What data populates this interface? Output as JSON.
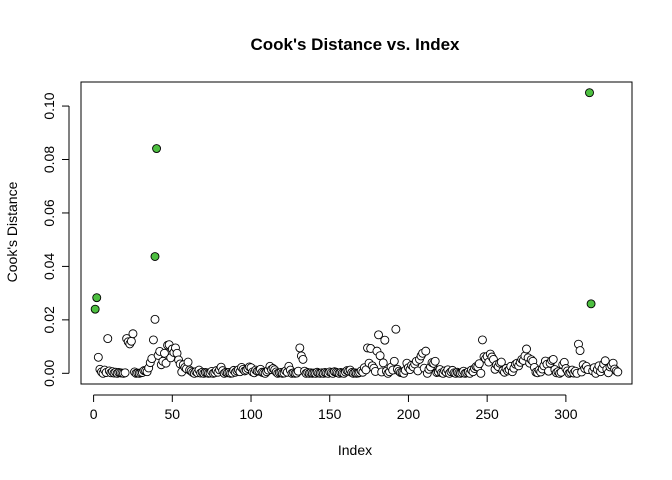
{
  "chart_data": {
    "type": "scatter",
    "title": "Cook's Distance vs. Index",
    "xlabel": "Index",
    "ylabel": "Cook's Distance",
    "xlim": [
      -8,
      342
    ],
    "ylim": [
      -0.004,
      0.109
    ],
    "xticks": [
      0,
      50,
      100,
      150,
      200,
      250,
      300
    ],
    "yticks": [
      0.0,
      0.02,
      0.04,
      0.06,
      0.08,
      0.1
    ],
    "ytick_labels": [
      "0.00",
      "0.02",
      "0.04",
      "0.06",
      "0.08",
      "0.10"
    ],
    "grid": false,
    "legend": "none",
    "colors": {
      "normal_fill": "#ffffff",
      "influential_fill": "#4dbf40",
      "stroke": "#000000"
    },
    "influential": [
      {
        "x": 1,
        "y": 0.024
      },
      {
        "x": 2,
        "y": 0.0283
      },
      {
        "x": 39,
        "y": 0.0437
      },
      {
        "x": 40,
        "y": 0.0841
      },
      {
        "x": 315,
        "y": 0.105
      },
      {
        "x": 316,
        "y": 0.026
      }
    ],
    "points": [
      [
        3,
        0.006
      ],
      [
        4,
        0.0015
      ],
      [
        5,
        0.0005
      ],
      [
        6,
        0.0
      ],
      [
        7,
        0.0012
      ],
      [
        8,
        0.0003
      ],
      [
        9,
        0.013
      ],
      [
        10,
        0.0009
      ],
      [
        11,
        0.0002
      ],
      [
        12,
        0.0006
      ],
      [
        13,
        0.0001
      ],
      [
        14,
        0.0004
      ],
      [
        15,
        0.0
      ],
      [
        16,
        0.0003
      ],
      [
        17,
        0.0002
      ],
      [
        18,
        0.0001
      ],
      [
        19,
        0.0
      ],
      [
        20,
        0.0002
      ],
      [
        21,
        0.013
      ],
      [
        22,
        0.0118
      ],
      [
        23,
        0.011
      ],
      [
        24,
        0.012
      ],
      [
        25,
        0.0148
      ],
      [
        26,
        0.0005
      ],
      [
        27,
        0.0
      ],
      [
        28,
        0.0001
      ],
      [
        29,
        0.0
      ],
      [
        30,
        0.0002
      ],
      [
        31,
        0.0003
      ],
      [
        32,
        0.001
      ],
      [
        33,
        0.0009
      ],
      [
        34,
        0.0006
      ],
      [
        35,
        0.002
      ],
      [
        36,
        0.004
      ],
      [
        37,
        0.0055
      ],
      [
        38,
        0.0125
      ],
      [
        39,
        0.0202
      ],
      [
        41,
        0.0067
      ],
      [
        42,
        0.0082
      ],
      [
        43,
        0.0032
      ],
      [
        44,
        0.0045
      ],
      [
        45,
        0.0075
      ],
      [
        46,
        0.0038
      ],
      [
        47,
        0.0105
      ],
      [
        48,
        0.0107
      ],
      [
        49,
        0.0058
      ],
      [
        50,
        0.0091
      ],
      [
        51,
        0.0078
      ],
      [
        52,
        0.0095
      ],
      [
        53,
        0.0075
      ],
      [
        54,
        0.005
      ],
      [
        55,
        0.0035
      ],
      [
        56,
        0.0005
      ],
      [
        57,
        0.0032
      ],
      [
        58,
        0.0022
      ],
      [
        59,
        0.0017
      ],
      [
        60,
        0.0042
      ],
      [
        61,
        0.0012
      ],
      [
        62,
        0.0008
      ],
      [
        63,
        0.0003
      ],
      [
        64,
        0.0
      ],
      [
        65,
        0.0006
      ],
      [
        66,
        0.0002
      ],
      [
        67,
        0.0012
      ],
      [
        68,
        0.0001
      ],
      [
        69,
        0.0004
      ],
      [
        70,
        0.0
      ],
      [
        71,
        0.0003
      ],
      [
        72,
        0.0002
      ],
      [
        73,
        0.0
      ],
      [
        74,
        0.0001
      ],
      [
        75,
        0.0007
      ],
      [
        76,
        0.0
      ],
      [
        77,
        0.0002
      ],
      [
        78,
        0.001
      ],
      [
        79,
        0.0004
      ],
      [
        80,
        0.0013
      ],
      [
        81,
        0.0023
      ],
      [
        82,
        0.001
      ],
      [
        83,
        0.0
      ],
      [
        84,
        0.0004
      ],
      [
        85,
        0.0002
      ],
      [
        86,
        0.0003
      ],
      [
        87,
        0.0
      ],
      [
        88,
        0.0001
      ],
      [
        89,
        0.0011
      ],
      [
        90,
        0.0004
      ],
      [
        91,
        0.0009
      ],
      [
        92,
        0.0013
      ],
      [
        93,
        0.0006
      ],
      [
        94,
        0.0022
      ],
      [
        95,
        0.0015
      ],
      [
        96,
        0.0009
      ],
      [
        97,
        0.0012
      ],
      [
        98,
        0.0018
      ],
      [
        99,
        0.0024
      ],
      [
        100,
        0.0021
      ],
      [
        101,
        0.0005
      ],
      [
        102,
        0.0002
      ],
      [
        103,
        0.0012
      ],
      [
        104,
        0.0008
      ],
      [
        105,
        0.0009
      ],
      [
        106,
        0.0015
      ],
      [
        107,
        0.0004
      ],
      [
        108,
        0.0002
      ],
      [
        109,
        0.0
      ],
      [
        110,
        0.0006
      ],
      [
        111,
        0.0012
      ],
      [
        112,
        0.0026
      ],
      [
        113,
        0.0014
      ],
      [
        114,
        0.0018
      ],
      [
        115,
        0.0013
      ],
      [
        116,
        0.0005
      ],
      [
        117,
        0.0
      ],
      [
        118,
        0.0002
      ],
      [
        119,
        0.0003
      ],
      [
        120,
        0.0
      ],
      [
        121,
        0.0001
      ],
      [
        122,
        0.0009
      ],
      [
        123,
        0.0004
      ],
      [
        124,
        0.0026
      ],
      [
        125,
        0.0012
      ],
      [
        126,
        0.0
      ],
      [
        127,
        0.0002
      ],
      [
        128,
        0.0
      ],
      [
        129,
        0.0001
      ],
      [
        130,
        0.0008
      ],
      [
        131,
        0.0095
      ],
      [
        132,
        0.0065
      ],
      [
        133,
        0.0052
      ],
      [
        134,
        0.0008
      ],
      [
        135,
        0.0
      ],
      [
        136,
        0.0003
      ],
      [
        137,
        0.0
      ],
      [
        138,
        0.0002
      ],
      [
        139,
        0.0
      ],
      [
        140,
        0.0001
      ],
      [
        141,
        0.0
      ],
      [
        142,
        0.0004
      ],
      [
        143,
        0.0001
      ],
      [
        144,
        0.0
      ],
      [
        145,
        0.0002
      ],
      [
        146,
        0.0
      ],
      [
        147,
        0.0003
      ],
      [
        148,
        0.0001
      ],
      [
        149,
        0.0
      ],
      [
        150,
        0.0005
      ],
      [
        151,
        0.0002
      ],
      [
        152,
        0.0
      ],
      [
        153,
        0.0006
      ],
      [
        154,
        0.0004
      ],
      [
        155,
        0.0002
      ],
      [
        156,
        0.0
      ],
      [
        157,
        0.0003
      ],
      [
        158,
        0.0001
      ],
      [
        159,
        0.0
      ],
      [
        160,
        0.0005
      ],
      [
        161,
        0.001
      ],
      [
        162,
        0.0008
      ],
      [
        163,
        0.0012
      ],
      [
        164,
        0.0003
      ],
      [
        165,
        0.0
      ],
      [
        166,
        0.0002
      ],
      [
        167,
        0.0
      ],
      [
        168,
        0.0001
      ],
      [
        169,
        0.0003
      ],
      [
        170,
        0.0009
      ],
      [
        171,
        0.0004
      ],
      [
        172,
        0.0021
      ],
      [
        173,
        0.0013
      ],
      [
        174,
        0.0095
      ],
      [
        175,
        0.0038
      ],
      [
        176,
        0.0093
      ],
      [
        177,
        0.0028
      ],
      [
        178,
        0.0019
      ],
      [
        179,
        0.0007
      ],
      [
        180,
        0.0083
      ],
      [
        181,
        0.0144
      ],
      [
        182,
        0.0066
      ],
      [
        183,
        0.0005
      ],
      [
        184,
        0.0039
      ],
      [
        185,
        0.0124
      ],
      [
        186,
        0.0008
      ],
      [
        187,
        0.0
      ],
      [
        188,
        0.0006
      ],
      [
        189,
        0.0023
      ],
      [
        190,
        0.0012
      ],
      [
        191,
        0.0045
      ],
      [
        192,
        0.0165
      ],
      [
        193,
        0.0015
      ],
      [
        194,
        0.0008
      ],
      [
        195,
        0.0003
      ],
      [
        196,
        0.0002
      ],
      [
        197,
        0.0
      ],
      [
        198,
        0.0011
      ],
      [
        199,
        0.0038
      ],
      [
        200,
        0.0021
      ],
      [
        201,
        0.0014
      ],
      [
        202,
        0.003
      ],
      [
        203,
        0.0024
      ],
      [
        204,
        0.0035
      ],
      [
        205,
        0.0045
      ],
      [
        206,
        0.0009
      ],
      [
        207,
        0.0052
      ],
      [
        208,
        0.0065
      ],
      [
        209,
        0.0075
      ],
      [
        210,
        0.0019
      ],
      [
        211,
        0.0083
      ],
      [
        212,
        0.0
      ],
      [
        213,
        0.0015
      ],
      [
        214,
        0.0024
      ],
      [
        215,
        0.004
      ],
      [
        216,
        0.0037
      ],
      [
        217,
        0.0045
      ],
      [
        218,
        0.0003
      ],
      [
        219,
        0.0005
      ],
      [
        220,
        0.0014
      ],
      [
        221,
        0.0002
      ],
      [
        222,
        0.0
      ],
      [
        223,
        0.0009
      ],
      [
        224,
        0.0004
      ],
      [
        225,
        0.0013
      ],
      [
        226,
        0.0
      ],
      [
        227,
        0.0006
      ],
      [
        228,
        0.0011
      ],
      [
        229,
        0.0002
      ],
      [
        230,
        0.0
      ],
      [
        231,
        0.0004
      ],
      [
        232,
        0.0001
      ],
      [
        233,
        0.0
      ],
      [
        234,
        0.0003
      ],
      [
        235,
        0.0008
      ],
      [
        236,
        0.0
      ],
      [
        237,
        0.0002
      ],
      [
        238,
        0.0005
      ],
      [
        239,
        0.0
      ],
      [
        240,
        0.0012
      ],
      [
        241,
        0.0006
      ],
      [
        242,
        0.0018
      ],
      [
        243,
        0.0025
      ],
      [
        244,
        0.0024
      ],
      [
        245,
        0.0036
      ],
      [
        246,
        0.0
      ],
      [
        247,
        0.0125
      ],
      [
        248,
        0.0062
      ],
      [
        249,
        0.0055
      ],
      [
        250,
        0.0063
      ],
      [
        251,
        0.0042
      ],
      [
        252,
        0.0072
      ],
      [
        253,
        0.0061
      ],
      [
        254,
        0.0052
      ],
      [
        255,
        0.0015
      ],
      [
        256,
        0.0032
      ],
      [
        257,
        0.0025
      ],
      [
        258,
        0.0038
      ],
      [
        259,
        0.0042
      ],
      [
        260,
        0.001
      ],
      [
        261,
        0.0004
      ],
      [
        262,
        0.0018
      ],
      [
        263,
        0.0009
      ],
      [
        264,
        0.0014
      ],
      [
        265,
        0.0026
      ],
      [
        266,
        0.0006
      ],
      [
        267,
        0.0019
      ],
      [
        268,
        0.0034
      ],
      [
        269,
        0.0038
      ],
      [
        270,
        0.0028
      ],
      [
        271,
        0.0041
      ],
      [
        272,
        0.0052
      ],
      [
        273,
        0.0048
      ],
      [
        274,
        0.0065
      ],
      [
        275,
        0.0091
      ],
      [
        276,
        0.0058
      ],
      [
        277,
        0.0038
      ],
      [
        278,
        0.0051
      ],
      [
        279,
        0.0045
      ],
      [
        280,
        0.0022
      ],
      [
        281,
        0.0004
      ],
      [
        282,
        0.0002
      ],
      [
        283,
        0.0012
      ],
      [
        284,
        0.0005
      ],
      [
        285,
        0.0016
      ],
      [
        286,
        0.0028
      ],
      [
        287,
        0.0046
      ],
      [
        288,
        0.0034
      ],
      [
        289,
        0.0008
      ],
      [
        290,
        0.0038
      ],
      [
        291,
        0.0048
      ],
      [
        292,
        0.0052
      ],
      [
        293,
        0.0014
      ],
      [
        294,
        0.0002
      ],
      [
        295,
        0.0006
      ],
      [
        296,
        0.0
      ],
      [
        297,
        0.0004
      ],
      [
        298,
        0.0032
      ],
      [
        299,
        0.0041
      ],
      [
        300,
        0.0018
      ],
      [
        301,
        0.0009
      ],
      [
        302,
        0.0
      ],
      [
        303,
        0.0003
      ],
      [
        304,
        0.0012
      ],
      [
        305,
        0.0001
      ],
      [
        306,
        0.0008
      ],
      [
        307,
        0.0
      ],
      [
        308,
        0.0109
      ],
      [
        309,
        0.0085
      ],
      [
        310,
        0.0005
      ],
      [
        311,
        0.0032
      ],
      [
        312,
        0.0018
      ],
      [
        313,
        0.0026
      ],
      [
        314,
        0.0014
      ],
      [
        317,
        0.0009
      ],
      [
        318,
        0.0021
      ],
      [
        319,
        0.0
      ],
      [
        320,
        0.0014
      ],
      [
        321,
        0.0028
      ],
      [
        322,
        0.0006
      ],
      [
        323,
        0.0018
      ],
      [
        324,
        0.0035
      ],
      [
        325,
        0.0047
      ],
      [
        326,
        0.0015
      ],
      [
        327,
        0.0002
      ],
      [
        328,
        0.0024
      ],
      [
        329,
        0.003
      ],
      [
        330,
        0.0038
      ],
      [
        331,
        0.0016
      ],
      [
        332,
        0.0009
      ],
      [
        333,
        0.0005
      ]
    ]
  }
}
